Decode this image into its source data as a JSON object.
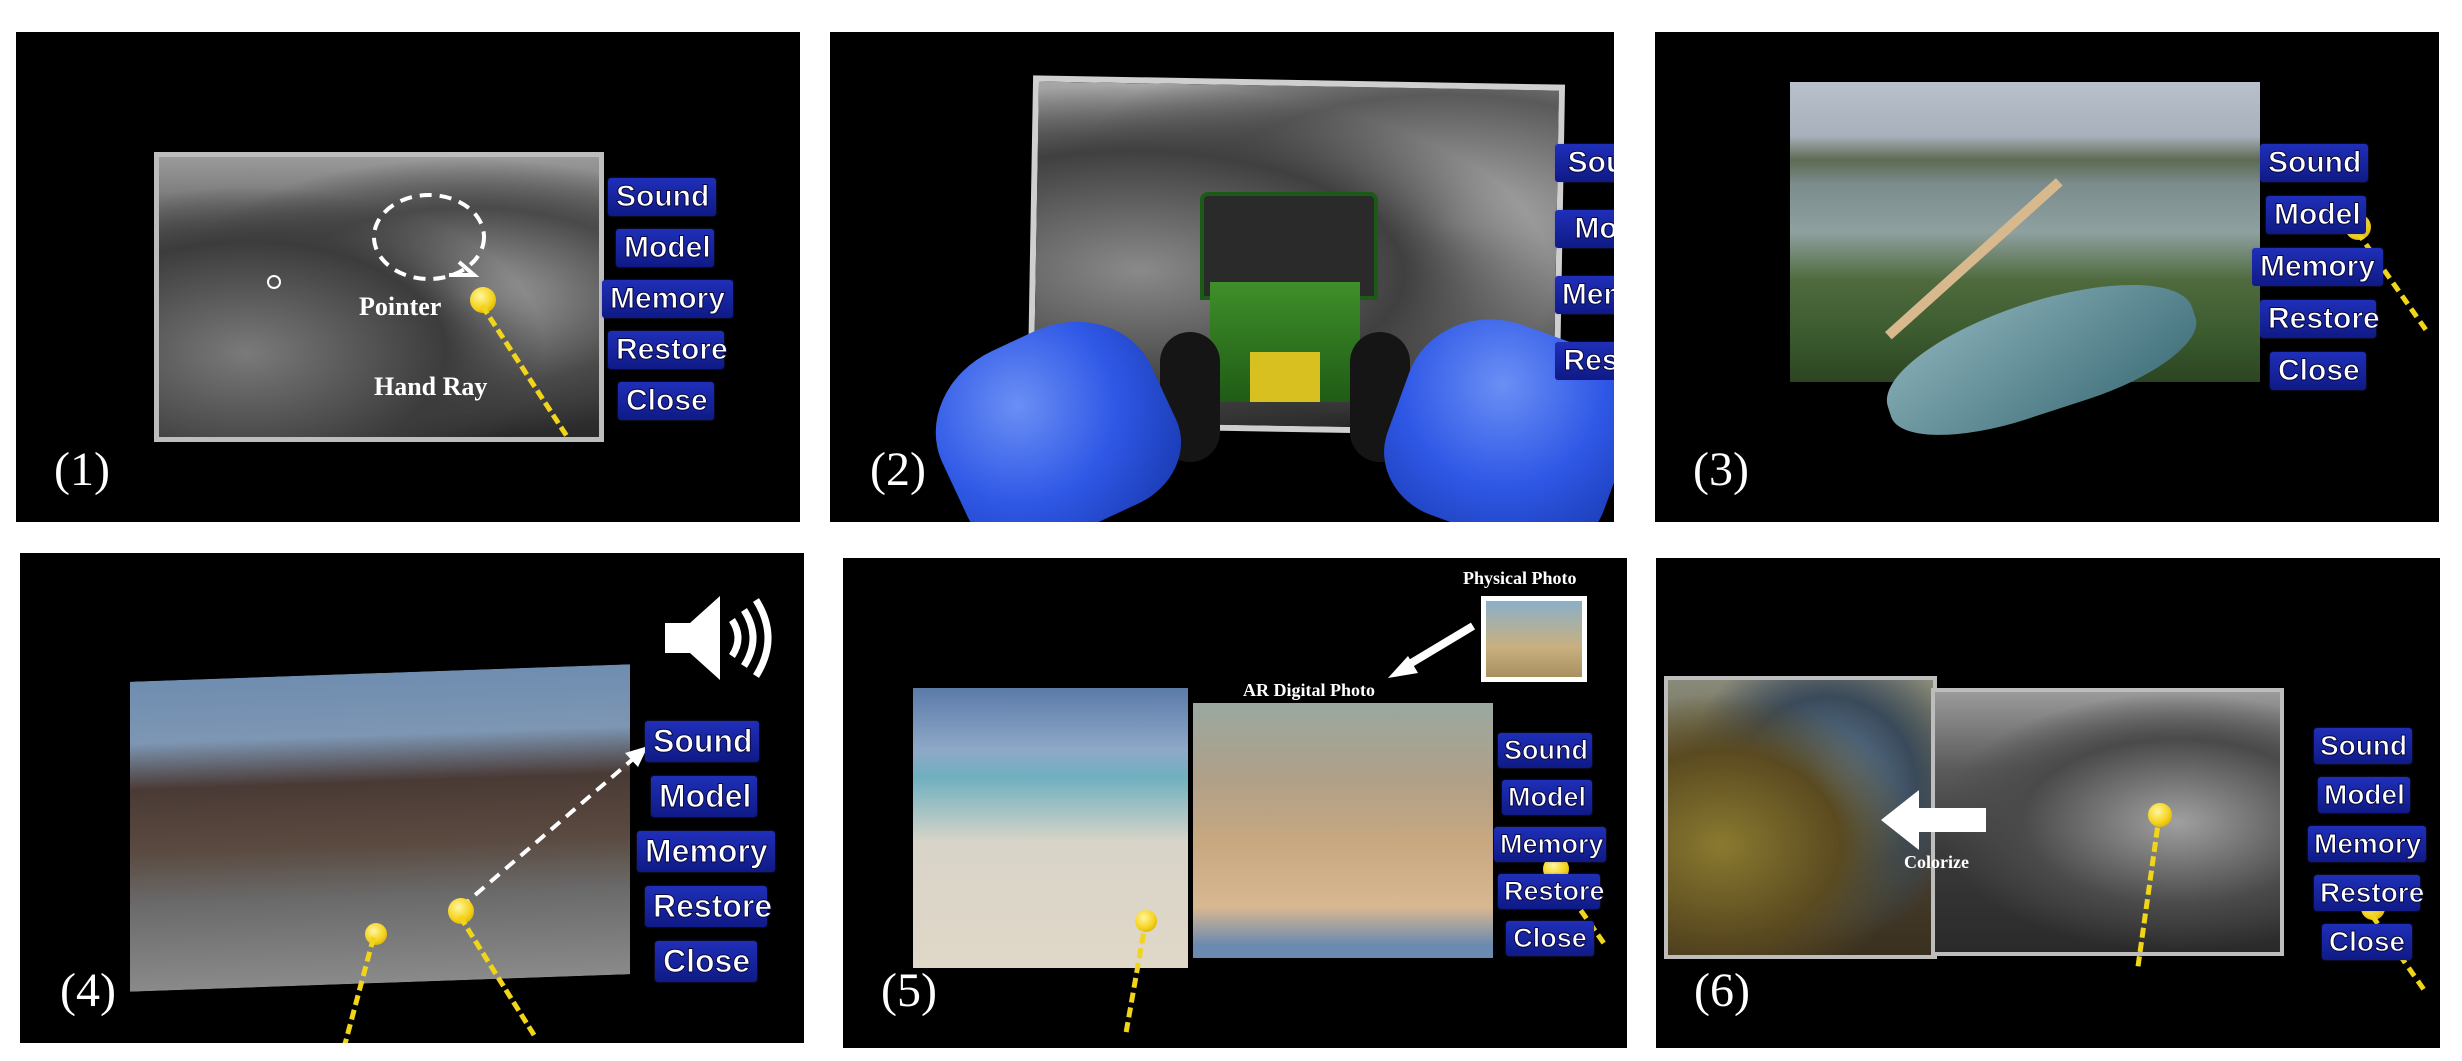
{
  "panels": [
    {
      "label": "(1)",
      "menu": [
        "Sound",
        "Model",
        "Memory",
        "Restore",
        "Close"
      ],
      "annotations": {
        "pointer": "Pointer",
        "hand_ray": "Hand Ray"
      }
    },
    {
      "label": "(2)",
      "menu": [
        "Sou",
        "Mo",
        "Mem",
        "Rest"
      ]
    },
    {
      "label": "(3)",
      "menu": [
        "Sound",
        "Model",
        "Memory",
        "Restore",
        "Close"
      ]
    },
    {
      "label": "(4)",
      "menu": [
        "Sound",
        "Model",
        "Memory",
        "Restore",
        "Close"
      ],
      "icons": [
        "speaker-icon"
      ]
    },
    {
      "label": "(5)",
      "menu": [
        "Sound",
        "Model",
        "Memory",
        "Restore",
        "Close"
      ],
      "annotations": {
        "physical_photo": "Physical Photo",
        "ar_digital_photo": "AR Digital Photo"
      }
    },
    {
      "label": "(6)",
      "menu": [
        "Sound",
        "Model",
        "Memory",
        "Restore",
        "Close"
      ],
      "annotations": {
        "colorize": "Colorize"
      }
    }
  ],
  "colors": {
    "menu_button": "#1a28a8",
    "pointer": "#f5d21a",
    "hand": "#2f58e6",
    "panel_background": "#000000"
  }
}
